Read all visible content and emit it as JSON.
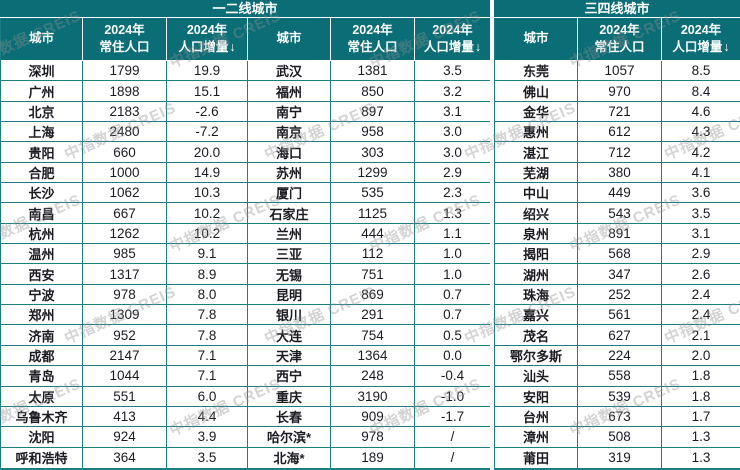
{
  "header": {
    "city": "城市",
    "year": "2024年",
    "population": "常住人口",
    "delta": "人口增量",
    "sort_arrow": "↓"
  },
  "watermark_text": "中指数据 CREIS",
  "colors": {
    "header_bg": "#0b6e76",
    "grid_line": "#1b7e85",
    "header_text": "#ffffff",
    "body_text": "#1b1b22",
    "background": "#ffffff"
  },
  "chart_data": [
    {
      "type": "table",
      "title": "一二线城市",
      "columns": [
        "城市",
        "2024年常住人口",
        "2024年人口增量↓"
      ],
      "sort": "人口增量 descending",
      "rows": [
        [
          "深圳",
          "1799",
          "19.9"
        ],
        [
          "广州",
          "1898",
          "15.1"
        ],
        [
          "北京",
          "2183",
          "-2.6"
        ],
        [
          "上海",
          "2480",
          "-7.2"
        ],
        [
          "贵阳",
          "660",
          "20.0"
        ],
        [
          "合肥",
          "1000",
          "14.9"
        ],
        [
          "长沙",
          "1062",
          "10.3"
        ],
        [
          "南昌",
          "667",
          "10.2"
        ],
        [
          "杭州",
          "1262",
          "10.2"
        ],
        [
          "温州",
          "985",
          "9.1"
        ],
        [
          "西安",
          "1317",
          "8.9"
        ],
        [
          "宁波",
          "978",
          "8.0"
        ],
        [
          "郑州",
          "1309",
          "7.8"
        ],
        [
          "济南",
          "952",
          "7.8"
        ],
        [
          "成都",
          "2147",
          "7.1"
        ],
        [
          "青岛",
          "1044",
          "7.1"
        ],
        [
          "太原",
          "551",
          "6.0"
        ],
        [
          "乌鲁木齐",
          "413",
          "4.4"
        ],
        [
          "沈阳",
          "924",
          "3.9"
        ],
        [
          "呼和浩特",
          "364",
          "3.5"
        ],
        [
          "武汉",
          "1381",
          "3.5"
        ],
        [
          "福州",
          "850",
          "3.2"
        ],
        [
          "南宁",
          "897",
          "3.1"
        ],
        [
          "南京",
          "958",
          "3.0"
        ],
        [
          "海口",
          "303",
          "3.0"
        ],
        [
          "苏州",
          "1299",
          "2.9"
        ],
        [
          "厦门",
          "535",
          "2.3"
        ],
        [
          "石家庄",
          "1125",
          "1.3"
        ],
        [
          "兰州",
          "444",
          "1.1"
        ],
        [
          "三亚",
          "112",
          "1.0"
        ],
        [
          "无锡",
          "751",
          "1.0"
        ],
        [
          "昆明",
          "869",
          "0.7"
        ],
        [
          "银川",
          "291",
          "0.7"
        ],
        [
          "大连",
          "754",
          "0.5"
        ],
        [
          "天津",
          "1364",
          "0.0"
        ],
        [
          "西宁",
          "248",
          "-0.4"
        ],
        [
          "重庆",
          "3190",
          "-1.0"
        ],
        [
          "长春",
          "909",
          "-1.7"
        ],
        [
          "哈尔滨*",
          "978",
          "/"
        ],
        [
          "北海*",
          "189",
          "/"
        ]
      ]
    },
    {
      "type": "table",
      "title": "三四线城市",
      "columns": [
        "城市",
        "2024年常住人口",
        "2024年人口增量↓"
      ],
      "sort": "人口增量 descending",
      "rows": [
        [
          "东莞",
          "1057",
          "8.5"
        ],
        [
          "佛山",
          "970",
          "8.4"
        ],
        [
          "金华",
          "721",
          "4.6"
        ],
        [
          "惠州",
          "612",
          "4.3"
        ],
        [
          "湛江",
          "712",
          "4.2"
        ],
        [
          "芜湖",
          "380",
          "4.1"
        ],
        [
          "中山",
          "449",
          "3.6"
        ],
        [
          "绍兴",
          "543",
          "3.5"
        ],
        [
          "泉州",
          "891",
          "3.1"
        ],
        [
          "揭阳",
          "568",
          "2.9"
        ],
        [
          "湖州",
          "347",
          "2.6"
        ],
        [
          "珠海",
          "252",
          "2.4"
        ],
        [
          "嘉兴",
          "561",
          "2.4"
        ],
        [
          "茂名",
          "627",
          "2.1"
        ],
        [
          "鄂尔多斯",
          "224",
          "2.0"
        ],
        [
          "汕头",
          "558",
          "1.8"
        ],
        [
          "安阳",
          "539",
          "1.8"
        ],
        [
          "台州",
          "673",
          "1.7"
        ],
        [
          "漳州",
          "508",
          "1.3"
        ],
        [
          "莆田",
          "319",
          "1.3"
        ]
      ]
    }
  ]
}
